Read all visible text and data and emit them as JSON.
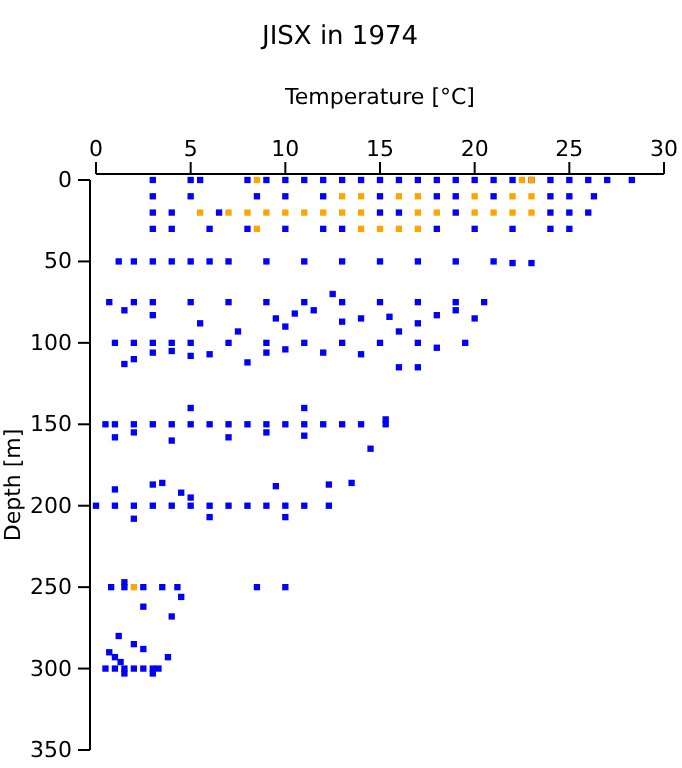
{
  "chart_data": {
    "type": "scatter",
    "title": "JISX in 1974",
    "xlabel": "Temperature [°C]",
    "ylabel": "Depth [m]",
    "xlim": [
      0,
      30
    ],
    "xticks": [
      0,
      5,
      10,
      15,
      20,
      25,
      30
    ],
    "ylim": [
      350,
      0
    ],
    "yticks": [
      0,
      50,
      100,
      150,
      200,
      250,
      300,
      350
    ],
    "marker": "square",
    "series": [
      {
        "color": "#0000ff",
        "x": [
          3,
          5,
          5.5,
          8,
          9,
          10,
          11,
          12,
          13,
          14,
          15,
          16,
          17,
          18,
          19,
          20,
          21,
          22,
          23,
          24,
          25,
          26,
          27,
          28.3,
          3,
          5,
          8.5,
          10,
          12,
          15,
          19,
          18,
          21,
          25,
          24,
          26.3,
          3,
          4,
          6.5,
          15,
          16,
          19,
          24,
          25,
          26,
          3,
          4,
          6,
          8,
          10,
          12,
          13,
          18,
          20,
          22,
          24,
          25,
          1.2,
          2,
          3,
          4,
          5,
          6,
          7,
          9,
          11,
          13,
          15,
          17,
          19,
          21,
          22,
          23,
          0.7,
          2,
          3,
          5,
          7,
          9,
          11,
          13,
          15,
          17,
          19,
          20.5,
          12.5,
          1.5,
          3,
          5.5,
          7.5,
          9.5,
          10,
          10.5,
          11.5,
          13,
          14,
          15.5,
          17,
          18,
          19,
          20,
          16,
          1,
          2,
          3,
          4,
          5,
          7,
          9,
          11,
          13,
          15,
          17,
          19.5,
          1.5,
          2,
          3,
          4,
          5,
          6,
          8,
          9,
          10,
          12,
          14,
          16,
          17,
          18,
          0.5,
          1,
          2,
          3,
          4,
          5,
          6,
          7,
          8,
          9,
          10,
          11,
          12,
          13,
          14,
          15.3,
          1,
          2,
          4,
          5,
          7,
          9,
          11,
          11,
          14.5,
          15.3,
          0,
          1,
          2,
          3,
          4,
          5,
          6,
          7,
          8,
          9,
          10,
          11,
          12.3,
          1,
          2,
          3,
          3.5,
          5,
          6,
          9.5,
          12.3,
          13.5,
          10,
          4.5,
          0.8,
          1.5,
          2.5,
          3.5,
          4.3,
          8.5,
          10,
          1.5,
          2.5,
          4,
          4.5,
          0.5,
          1,
          1.5,
          2,
          2.5,
          3,
          3.3,
          0.7,
          1,
          2,
          2.5,
          1.2,
          1.5,
          3.8,
          1.3,
          3
        ],
        "values": [
          0,
          0,
          0,
          0,
          0,
          0,
          0,
          0,
          0,
          0,
          0,
          0,
          0,
          0,
          0,
          0,
          0,
          0,
          0,
          0,
          0,
          0,
          0,
          0,
          10,
          10,
          10,
          10,
          10,
          10,
          10,
          10,
          10,
          10,
          10,
          10,
          20,
          20,
          20,
          20,
          20,
          20,
          20,
          20,
          20,
          30,
          30,
          30,
          30,
          30,
          30,
          30,
          30,
          30,
          30,
          30,
          30,
          50,
          50,
          50,
          50,
          50,
          50,
          50,
          50,
          50,
          50,
          50,
          50,
          50,
          50,
          51,
          51,
          75,
          75,
          75,
          75,
          75,
          75,
          75,
          75,
          75,
          75,
          75,
          75,
          70,
          80,
          83,
          88,
          93,
          85,
          90,
          82,
          80,
          87,
          85,
          84,
          88,
          83,
          80,
          85,
          93,
          100,
          100,
          100,
          100,
          100,
          100,
          100,
          100,
          100,
          100,
          100,
          100,
          113,
          110,
          106,
          105,
          108,
          107,
          112,
          106,
          104,
          106,
          107,
          115,
          115,
          103,
          150,
          150,
          150,
          150,
          150,
          150,
          150,
          150,
          150,
          150,
          150,
          150,
          150,
          150,
          150,
          150,
          158,
          155,
          160,
          140,
          158,
          155,
          157,
          140,
          165,
          147,
          200,
          200,
          200,
          200,
          200,
          200,
          200,
          200,
          200,
          200,
          200,
          200,
          200,
          190,
          208,
          187,
          186,
          195,
          207,
          188,
          187,
          186,
          207,
          192,
          250,
          250,
          250,
          250,
          250,
          250,
          250,
          247,
          262,
          268,
          256,
          300,
          300,
          300,
          300,
          300,
          300,
          300,
          290,
          293,
          285,
          288,
          280,
          303,
          293,
          296,
          303
        ]
      },
      {
        "color": "#ffa500",
        "x": [
          8.5,
          22.5,
          23,
          13,
          14,
          16,
          17,
          20,
          22,
          23,
          5.5,
          7,
          8,
          9,
          10,
          11,
          12,
          13,
          14,
          17,
          18,
          20,
          21,
          22,
          23,
          8.5,
          14,
          15,
          16,
          17,
          2
        ],
        "values": [
          0,
          0,
          0,
          10,
          10,
          10,
          10,
          10,
          10,
          10,
          20,
          20,
          20,
          20,
          20,
          20,
          20,
          20,
          20,
          20,
          20,
          20,
          20,
          20,
          20,
          30,
          30,
          30,
          30,
          30,
          250
        ]
      }
    ]
  }
}
